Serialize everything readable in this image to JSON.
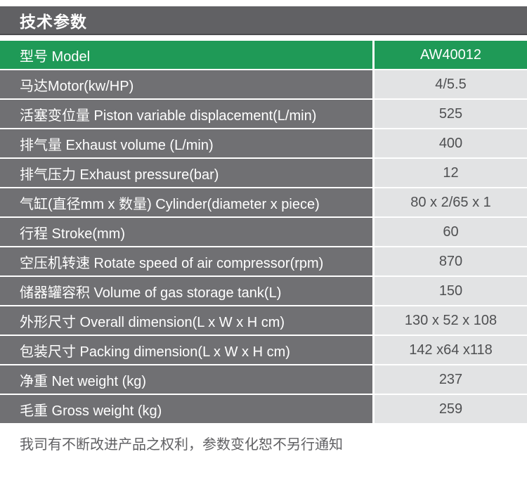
{
  "page": {
    "title": "技术参数",
    "footer_note": "我司有不断改进产品之权利，参数变化恕不另行通知"
  },
  "table": {
    "header": {
      "label": "型号 Model",
      "value": "AW40012"
    },
    "rows": [
      {
        "label": "马达Motor(kw/HP)",
        "value": "4/5.5"
      },
      {
        "label": "活塞变位量 Piston variable displacement(L/min)",
        "value": "525"
      },
      {
        "label": "排气量 Exhaust volume (L/min)",
        "value": "400"
      },
      {
        "label": "排气压力 Exhaust pressure(bar)",
        "value": "12"
      },
      {
        "label": "气缸(直径mm x 数量) Cylinder(diameter x piece)",
        "value": "80 x 2/65 x 1"
      },
      {
        "label": "行程 Stroke(mm)",
        "value": "60"
      },
      {
        "label": "空压机转速 Rotate speed of air compressor(rpm)",
        "value": "870"
      },
      {
        "label": "储器罐容积 Volume of gas storage tank(L)",
        "value": "150"
      },
      {
        "label": "外形尺寸 Overall dimension(L x W x H cm)",
        "value": "130 x 52 x 108"
      },
      {
        "label": "包装尺寸 Packing dimension(L x W x H cm)",
        "value": "142 x64 x118"
      },
      {
        "label": "净重 Net weight (kg)",
        "value": "237"
      },
      {
        "label": "毛重 Gross weight (kg)",
        "value": "259"
      }
    ]
  },
  "colors": {
    "accent_green": "#1f9a57",
    "title_bar_gray": "#616164",
    "label_cell_gray": "#707073",
    "value_cell_gray": "#e2e3e4",
    "value_text_gray": "#4f5052"
  }
}
